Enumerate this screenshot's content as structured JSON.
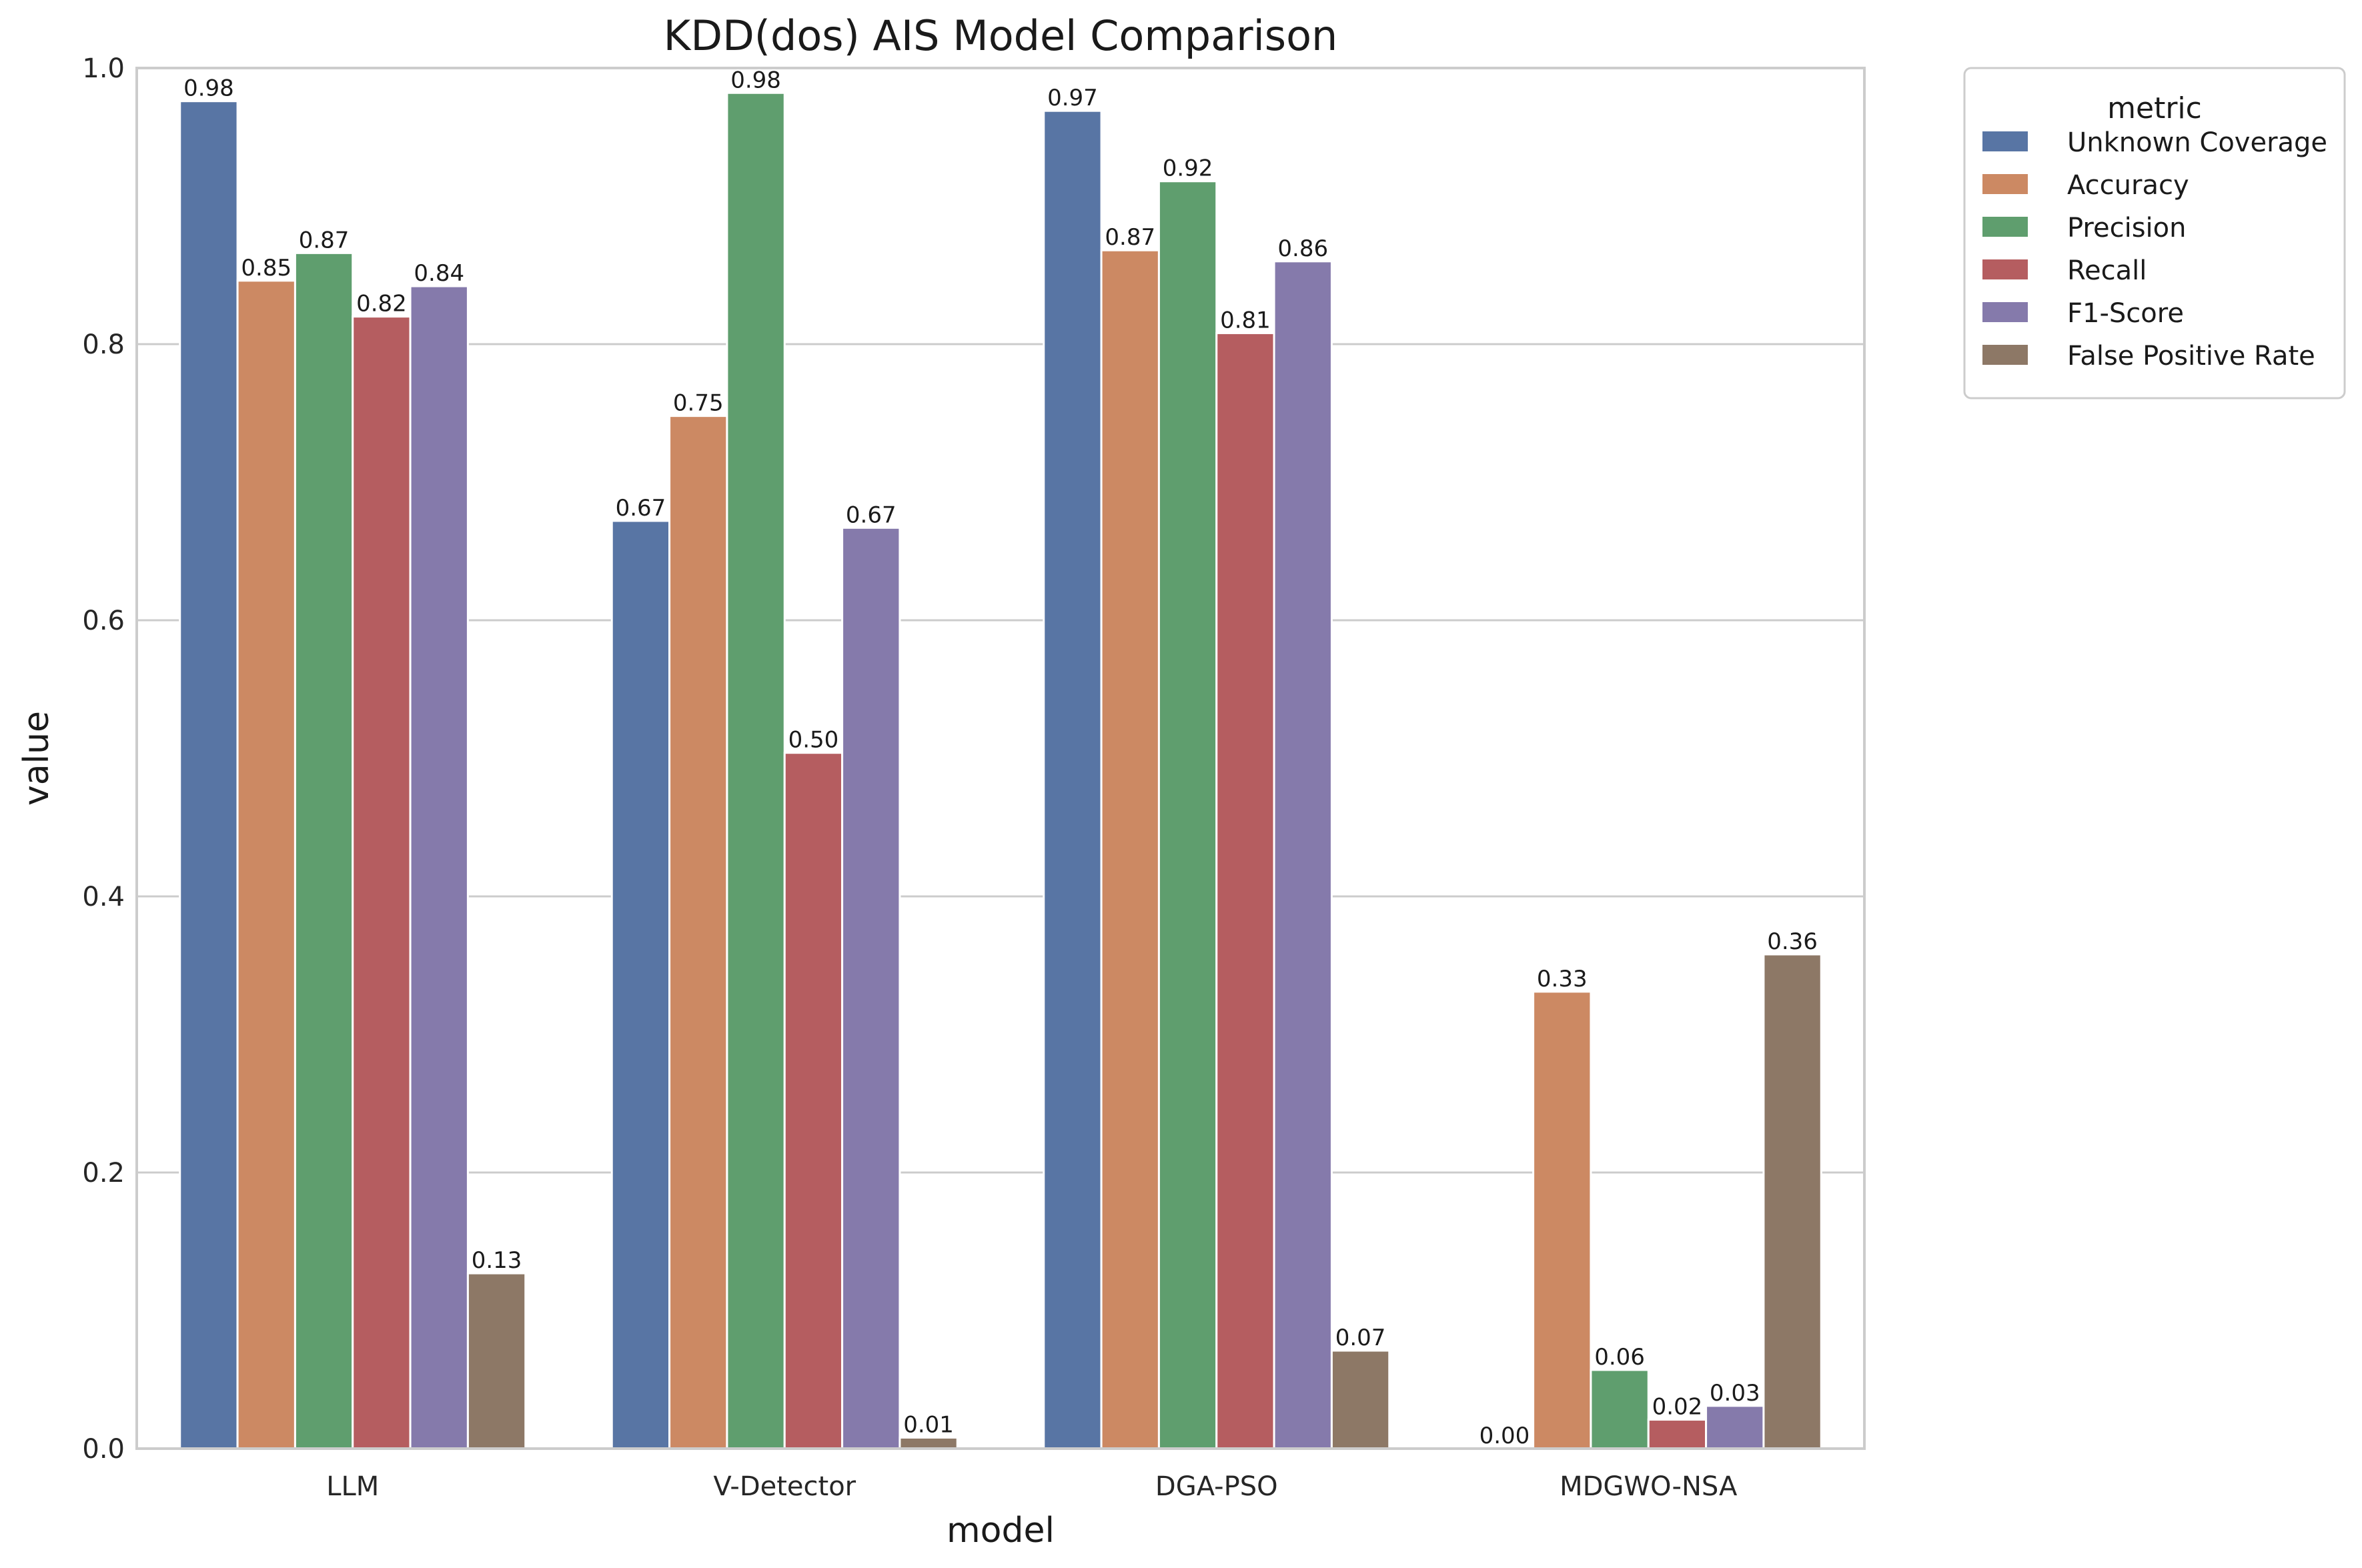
{
  "chart_data": {
    "type": "bar",
    "title": "KDD(dos) AIS Model Comparison",
    "xlabel": "model",
    "ylabel": "value",
    "ylim": [
      0,
      1.0
    ],
    "yticks": [
      "0.0",
      "0.2",
      "0.4",
      "0.6",
      "0.8",
      "1.0"
    ],
    "ytick_values": [
      0,
      0.2,
      0.4,
      0.6,
      0.8,
      1.0
    ],
    "grid": true,
    "categories": [
      "LLM",
      "V-Detector",
      "DGA-PSO",
      "MDGWO-NSA"
    ],
    "legend": {
      "title": "metric",
      "position": "outside-top-right"
    },
    "series": [
      {
        "name": "Unknown Coverage",
        "color": "#5875a4",
        "values": [
          0.976,
          0.672,
          0.969,
          0.0
        ],
        "labels": [
          "0.98",
          "0.67",
          "0.97",
          "0.00"
        ]
      },
      {
        "name": "Accuracy",
        "color": "#cc8963",
        "values": [
          0.846,
          0.748,
          0.868,
          0.331
        ],
        "labels": [
          "0.85",
          "0.75",
          "0.87",
          "0.33"
        ]
      },
      {
        "name": "Precision",
        "color": "#5f9e6e",
        "values": [
          0.866,
          0.982,
          0.918,
          0.057
        ],
        "labels": [
          "0.87",
          "0.98",
          "0.92",
          "0.06"
        ]
      },
      {
        "name": "Recall",
        "color": "#b55d60",
        "values": [
          0.82,
          0.504,
          0.808,
          0.021
        ],
        "labels": [
          "0.82",
          "0.50",
          "0.81",
          "0.02"
        ]
      },
      {
        "name": "F1-Score",
        "color": "#857aab",
        "values": [
          0.842,
          0.667,
          0.86,
          0.031
        ],
        "labels": [
          "0.84",
          "0.67",
          "0.86",
          "0.03"
        ]
      },
      {
        "name": "False Positive Rate",
        "color": "#8d7866",
        "values": [
          0.127,
          0.008,
          0.071,
          0.358
        ],
        "labels": [
          "0.13",
          "0.01",
          "0.07",
          "0.36"
        ]
      }
    ]
  }
}
